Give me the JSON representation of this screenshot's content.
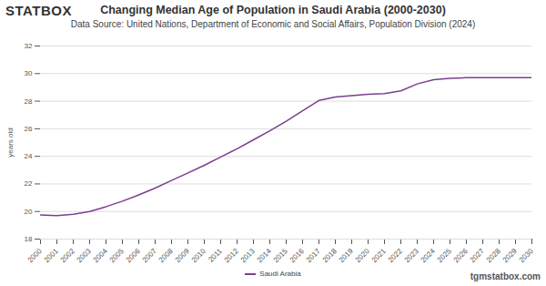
{
  "chart_data": {
    "type": "line",
    "logo": "STATBOX",
    "title": "Changing Median Age of Population in Saudi Arabia (2000-2030)",
    "subtitle": "Data Source: United Nations, Department of Economic and Social Affairs, Population Division (2024)",
    "caption": "tgmstatbox.com",
    "y_label": "years old",
    "x": [
      2000,
      2001,
      2002,
      2003,
      2004,
      2005,
      2006,
      2007,
      2008,
      2009,
      2010,
      2011,
      2012,
      2013,
      2014,
      2015,
      2016,
      2017,
      2018,
      2019,
      2020,
      2021,
      2022,
      2023,
      2024,
      2025,
      2026,
      2027,
      2028,
      2029,
      2030
    ],
    "series": [
      {
        "name": "Saudi Arabia",
        "color": "#7b3f8c",
        "values": [
          19.75,
          19.7,
          19.8,
          20.0,
          20.35,
          20.75,
          21.2,
          21.7,
          22.25,
          22.8,
          23.35,
          23.95,
          24.55,
          25.2,
          25.85,
          26.55,
          27.3,
          28.05,
          28.3,
          28.4,
          28.5,
          28.55,
          28.75,
          29.25,
          29.55,
          29.65,
          29.7,
          29.7,
          29.7,
          29.7,
          29.7
        ]
      }
    ],
    "xlim": [
      2000,
      2030
    ],
    "xticks": [
      2000,
      2001,
      2002,
      2003,
      2004,
      2005,
      2006,
      2007,
      2008,
      2009,
      2010,
      2011,
      2012,
      2013,
      2014,
      2015,
      2016,
      2017,
      2018,
      2019,
      2020,
      2021,
      2022,
      2023,
      2024,
      2025,
      2026,
      2027,
      2028,
      2029,
      2030
    ],
    "ylim": [
      18,
      32
    ],
    "yticks": [
      18,
      20,
      22,
      24,
      26,
      28,
      30,
      32
    ],
    "grid": true,
    "legend": "bottom"
  }
}
